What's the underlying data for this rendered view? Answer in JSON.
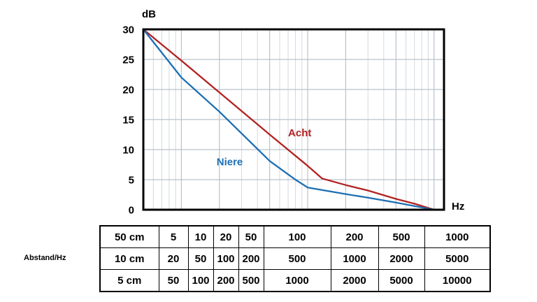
{
  "labels": {
    "y_unit": "dB",
    "x_unit": "Hz",
    "side_label": "Abstand/Hz"
  },
  "chart_data": {
    "type": "line",
    "title": "",
    "x_axis": {
      "label": "Hz",
      "scale": "log",
      "min": 5,
      "max": 1200,
      "major_ticks": [
        10,
        20,
        50,
        100,
        200,
        500,
        1000
      ]
    },
    "y_axis": {
      "label": "dB",
      "min": 0,
      "max": 30,
      "ticks": [
        0,
        5,
        10,
        15,
        20,
        25,
        30
      ]
    },
    "grid": true,
    "legend_position": "inline-annotations",
    "series": [
      {
        "name": "Acht",
        "color": "#b22222",
        "points": [
          [
            5,
            30
          ],
          [
            10,
            24.8
          ],
          [
            20,
            19.5
          ],
          [
            50,
            12.5
          ],
          [
            100,
            7.3
          ],
          [
            130,
            5.2
          ],
          [
            200,
            4.1
          ],
          [
            300,
            3.2
          ],
          [
            500,
            1.8
          ],
          [
            700,
            1.0
          ],
          [
            1000,
            0
          ]
        ]
      },
      {
        "name": "Niere",
        "color": "#1c6fb4",
        "points": [
          [
            5,
            30
          ],
          [
            10,
            22.0
          ],
          [
            20,
            16.3
          ],
          [
            50,
            8.1
          ],
          [
            80,
            5.0
          ],
          [
            100,
            3.7
          ],
          [
            200,
            2.6
          ],
          [
            300,
            2.0
          ],
          [
            500,
            1.2
          ],
          [
            700,
            0.6
          ],
          [
            1000,
            0
          ]
        ]
      }
    ],
    "annotations": [
      {
        "text": "Acht",
        "f": 70,
        "db": 12.2,
        "color": "#b22222"
      },
      {
        "text": "Niere",
        "f": 19,
        "db": 7.4,
        "color": "#1c6fb4"
      }
    ]
  },
  "table": {
    "rows": [
      {
        "label": "50 cm",
        "values": [
          "5",
          "10",
          "20",
          "50",
          "100",
          "200",
          "500",
          "1000"
        ]
      },
      {
        "label": "10 cm",
        "values": [
          "20",
          "50",
          "100",
          "200",
          "500",
          "1000",
          "2000",
          "5000"
        ]
      },
      {
        "label": "5 cm",
        "values": [
          "50",
          "100",
          "200",
          "500",
          "1000",
          "2000",
          "5000",
          "10000"
        ]
      }
    ]
  },
  "style": {
    "minor_grid_color": "#d4d9de",
    "major_grid_color": "#b9c2cb",
    "axis_color": "#000000"
  }
}
